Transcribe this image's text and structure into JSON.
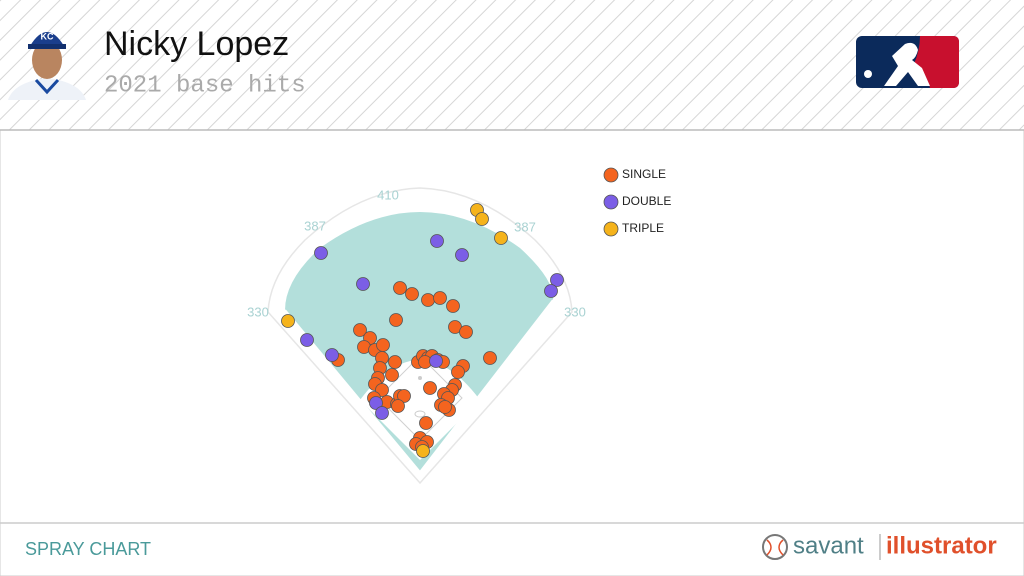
{
  "chart_data": {
    "type": "scatter",
    "title": "Nicky Lopez",
    "subtitle": "2021 base hits",
    "xlim": [
      -210,
      210
    ],
    "ylim": [
      -30,
      290
    ],
    "legend": "top-right",
    "fence_distances": [
      330,
      387,
      410,
      387,
      330
    ],
    "series": [
      {
        "name": "SINGLE",
        "color": "#f4641f",
        "x": [
          -20,
          -8,
          8,
          20,
          33,
          -24,
          35,
          46,
          -60,
          -50,
          -56,
          -45,
          -37,
          -82,
          -25,
          -38,
          -40,
          -28,
          -42,
          -45,
          -38,
          -2,
          3,
          8,
          12,
          18,
          23,
          5,
          70,
          43,
          38,
          35,
          32,
          10,
          24,
          28,
          21,
          29,
          25,
          -46,
          -33,
          -23,
          -20,
          -16,
          -22,
          6,
          0,
          -4,
          7,
          2
        ],
        "y": [
          162,
          156,
          150,
          152,
          144,
          130,
          123,
          118,
          120,
          112,
          103,
          100,
          105,
          90,
          88,
          92,
          82,
          75,
          72,
          66,
          60,
          88,
          94,
          92,
          94,
          90,
          88,
          88,
          92,
          84,
          78,
          65,
          60,
          62,
          56,
          52,
          45,
          40,
          43,
          52,
          48,
          46,
          54,
          54,
          44,
          27,
          12,
          6,
          8,
          3
        ]
      },
      {
        "name": "DOUBLE",
        "color": "#7b5ee6",
        "x": [
          -99,
          17,
          42,
          -57,
          137,
          131,
          -113,
          -88,
          16,
          -44,
          -38
        ],
        "y": [
          197,
          209,
          195,
          166,
          170,
          159,
          110,
          95,
          89,
          47,
          37
        ]
      },
      {
        "name": "TRIPLE",
        "color": "#f5b31b",
        "x": [
          57,
          62,
          81,
          -132,
          3
        ],
        "y": [
          240,
          231,
          212,
          129,
          -1
        ]
      }
    ]
  },
  "footer": {
    "label": "SPRAY CHART",
    "brand": "savant",
    "product": "illustrator"
  }
}
